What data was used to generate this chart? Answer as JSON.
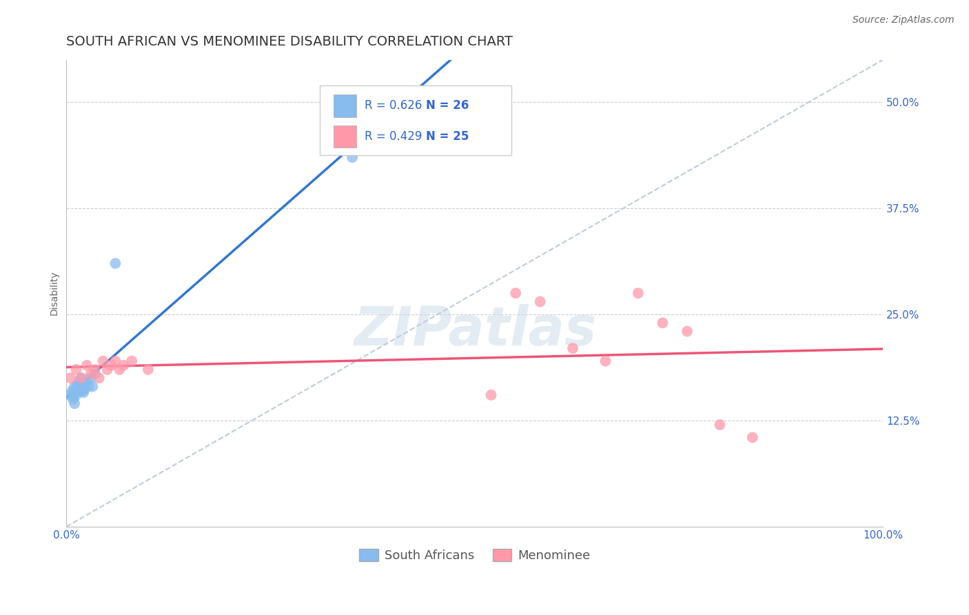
{
  "title": "SOUTH AFRICAN VS MENOMINEE DISABILITY CORRELATION CHART",
  "source": "Source: ZipAtlas.com",
  "ylabel": "Disability",
  "xlim": [
    0.0,
    1.0
  ],
  "ylim": [
    0.0,
    0.55
  ],
  "yticks": [
    0.125,
    0.25,
    0.375,
    0.5
  ],
  "ytick_labels": [
    "12.5%",
    "25.0%",
    "37.5%",
    "50.0%"
  ],
  "xticks": [
    0.0,
    0.25,
    0.5,
    0.75,
    1.0
  ],
  "xtick_labels": [
    "0.0%",
    "",
    "",
    "",
    "100.0%"
  ],
  "blue_color": "#88BBEE",
  "pink_color": "#FF99AA",
  "blue_line_color": "#3377CC",
  "pink_line_color": "#EE5577",
  "ref_line_color": "#BBCCDD",
  "legend_r1": "R = 0.626",
  "legend_n1": "N = 26",
  "legend_r2": "R = 0.429",
  "legend_n2": "N = 25",
  "legend_label1": "South Africans",
  "legend_label2": "Menominee",
  "watermark": "ZIPatlas",
  "sa_x": [
    0.005,
    0.007,
    0.008,
    0.009,
    0.01,
    0.01,
    0.011,
    0.012,
    0.013,
    0.014,
    0.015,
    0.016,
    0.017,
    0.018,
    0.019,
    0.02,
    0.021,
    0.022,
    0.023,
    0.025,
    0.027,
    0.03,
    0.032,
    0.035,
    0.06,
    0.35
  ],
  "sa_y": [
    0.155,
    0.16,
    0.15,
    0.155,
    0.165,
    0.145,
    0.16,
    0.155,
    0.165,
    0.16,
    0.17,
    0.165,
    0.16,
    0.175,
    0.165,
    0.16,
    0.158,
    0.162,
    0.168,
    0.172,
    0.165,
    0.175,
    0.165,
    0.18,
    0.31,
    0.435
  ],
  "men_x": [
    0.005,
    0.012,
    0.018,
    0.025,
    0.03,
    0.035,
    0.04,
    0.045,
    0.05,
    0.055,
    0.06,
    0.065,
    0.07,
    0.08,
    0.1,
    0.52,
    0.55,
    0.58,
    0.62,
    0.66,
    0.7,
    0.73,
    0.76,
    0.8,
    0.84
  ],
  "men_y": [
    0.175,
    0.185,
    0.175,
    0.19,
    0.18,
    0.185,
    0.175,
    0.195,
    0.185,
    0.19,
    0.195,
    0.185,
    0.19,
    0.195,
    0.185,
    0.155,
    0.275,
    0.265,
    0.21,
    0.195,
    0.275,
    0.24,
    0.23,
    0.12,
    0.105
  ],
  "title_fontsize": 14,
  "axis_label_fontsize": 10,
  "tick_fontsize": 11,
  "legend_fontsize": 12,
  "source_fontsize": 10
}
